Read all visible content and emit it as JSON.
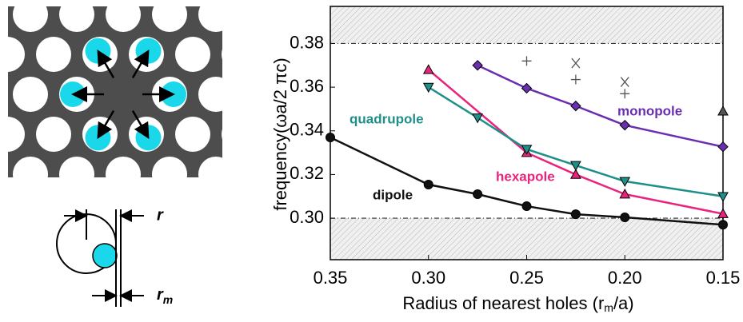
{
  "diagram": {
    "radius_label": "r",
    "inner_radius_label": "r",
    "inner_radius_subscript": "m"
  },
  "chart_data": {
    "type": "line",
    "y_label": "frequency(ωa/2 πc)",
    "x_label": [
      "Radius of nearest holes (r",
      "m",
      "/a)"
    ],
    "xlim": [
      0.35,
      0.15
    ],
    "xticks": [
      0.35,
      {
        "value": 0.3,
        "label": "0.30"
      },
      0.25,
      {
        "value": 0.2,
        "label": "0.20"
      },
      0.15
    ],
    "ylim": [
      0.281,
      0.397
    ],
    "yticks": [
      {
        "value": 0.3,
        "label": "0.30"
      },
      0.32,
      0.34,
      0.36,
      0.38
    ],
    "shaded_bands": [
      [
        0.38,
        0.397
      ],
      [
        0.281,
        0.3
      ]
    ],
    "series": [
      {
        "name": "dipole",
        "color": "#111111",
        "marker": "circle",
        "x": [
          0.35,
          0.3,
          0.275,
          0.25,
          0.225,
          0.2,
          0.15
        ],
        "values": [
          0.337,
          0.3154,
          0.311,
          0.3055,
          0.3018,
          0.3004,
          0.297
        ]
      },
      {
        "name": "hexapole",
        "color": "#e8247c",
        "marker": "triangle-up",
        "x": [
          0.3,
          0.25,
          0.225,
          0.2,
          0.15
        ],
        "values": [
          0.368,
          0.33,
          0.32,
          0.311,
          0.302
        ]
      },
      {
        "name": "quadrupole",
        "color": "#1f8f8a",
        "marker": "triangle-down",
        "x": [
          0.3,
          0.275,
          0.25,
          0.225,
          0.2,
          0.15
        ],
        "values": [
          0.36,
          0.346,
          0.3316,
          0.3242,
          0.3169,
          0.31
        ]
      },
      {
        "name": "monopole",
        "color": "#6a2fb0",
        "marker": "diamond",
        "x": [
          0.275,
          0.25,
          0.225,
          0.2,
          0.15
        ],
        "values": [
          0.37,
          0.3595,
          0.3514,
          0.3426,
          0.3327
        ]
      }
    ],
    "extra_points": [
      {
        "marker": "plus",
        "x": 0.25,
        "y": 0.372
      },
      {
        "marker": "plus",
        "x": 0.225,
        "y": 0.3635
      },
      {
        "marker": "cross",
        "x": 0.225,
        "y": 0.371
      },
      {
        "marker": "cross",
        "x": 0.2,
        "y": 0.3624
      },
      {
        "marker": "plus",
        "x": 0.2,
        "y": 0.357
      },
      {
        "marker": "triangle-up",
        "x": 0.15,
        "y": 0.349
      }
    ]
  }
}
